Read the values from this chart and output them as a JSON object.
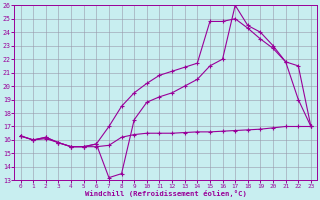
{
  "xlabel": "Windchill (Refroidissement éolien,°C)",
  "xlim": [
    -0.5,
    23.5
  ],
  "ylim": [
    13,
    26
  ],
  "xticks": [
    0,
    1,
    2,
    3,
    4,
    5,
    6,
    7,
    8,
    9,
    10,
    11,
    12,
    13,
    14,
    15,
    16,
    17,
    18,
    19,
    20,
    21,
    22,
    23
  ],
  "yticks": [
    13,
    14,
    15,
    16,
    17,
    18,
    19,
    20,
    21,
    22,
    23,
    24,
    25,
    26
  ],
  "bg_color": "#c8eef0",
  "line_color": "#990099",
  "grid_color": "#9999aa",
  "line1_x": [
    0,
    1,
    2,
    3,
    4,
    5,
    6,
    7,
    8,
    9,
    10,
    11,
    12,
    13,
    14,
    15,
    16,
    17,
    18,
    19,
    20,
    21,
    22,
    23
  ],
  "line1_y": [
    16.3,
    16.0,
    16.1,
    15.8,
    15.5,
    15.5,
    15.5,
    15.6,
    16.2,
    16.4,
    16.5,
    16.5,
    16.5,
    16.55,
    16.6,
    16.6,
    16.65,
    16.7,
    16.75,
    16.8,
    16.9,
    17.0,
    17.0,
    17.0
  ],
  "line2_x": [
    0,
    1,
    2,
    3,
    4,
    5,
    6,
    7,
    8,
    9,
    10,
    11,
    12,
    13,
    14,
    15,
    16,
    17,
    18,
    19,
    20,
    21,
    22,
    23
  ],
  "line2_y": [
    16.3,
    16.0,
    16.2,
    15.8,
    15.5,
    15.5,
    15.7,
    13.2,
    13.5,
    17.5,
    18.8,
    19.2,
    19.5,
    20.0,
    20.5,
    21.5,
    22.0,
    26.0,
    24.5,
    24.0,
    23.0,
    21.8,
    19.0,
    17.0
  ],
  "line3_x": [
    0,
    1,
    2,
    3,
    4,
    5,
    6,
    7,
    8,
    9,
    10,
    11,
    12,
    13,
    14,
    15,
    16,
    17,
    18,
    19,
    20,
    21,
    22,
    23
  ],
  "line3_y": [
    16.3,
    16.0,
    16.2,
    15.8,
    15.5,
    15.5,
    15.7,
    17.0,
    18.5,
    19.5,
    20.2,
    20.8,
    21.1,
    21.4,
    21.7,
    24.8,
    24.8,
    25.0,
    24.3,
    23.5,
    22.8,
    21.8,
    21.5,
    17.0
  ]
}
